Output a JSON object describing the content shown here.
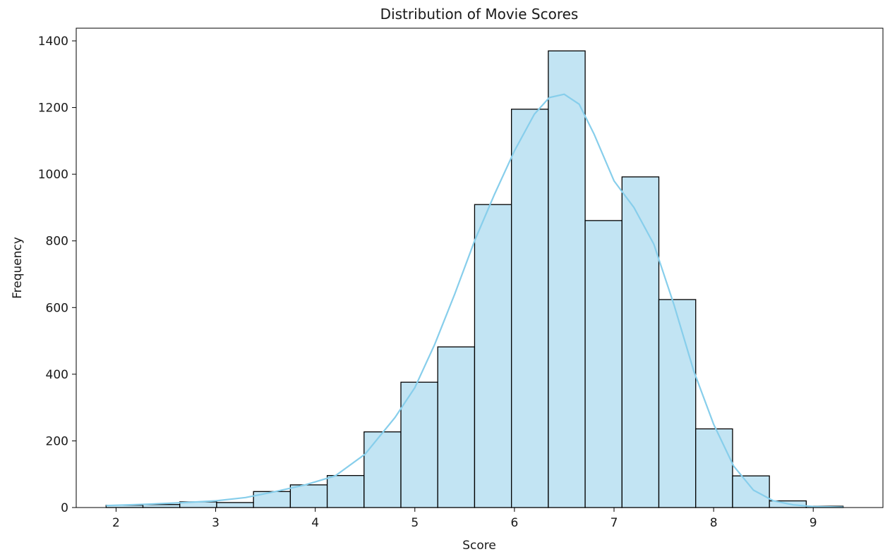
{
  "chart_data": {
    "type": "bar",
    "subtype": "histogram",
    "title": "Distribution of Movie Scores",
    "xlabel": "Score",
    "ylabel": "Frequency",
    "xlim": [
      1.6,
      9.7
    ],
    "ylim": [
      0,
      1400
    ],
    "xticks": [
      2,
      3,
      4,
      5,
      6,
      7,
      8,
      9
    ],
    "yticks": [
      0,
      200,
      400,
      600,
      800,
      1000,
      1200,
      1400
    ],
    "grid": false,
    "bins": {
      "edges": [
        1.9,
        2.27,
        2.64,
        3.01,
        3.38,
        3.75,
        4.12,
        4.49,
        4.86,
        5.23,
        5.6,
        5.97,
        6.34,
        6.71,
        7.08,
        7.45,
        7.82,
        8.19,
        8.56,
        8.93,
        9.3
      ],
      "values": [
        7,
        9,
        17,
        15,
        48,
        68,
        96,
        227,
        376,
        482,
        909,
        1195,
        1370,
        861,
        992,
        624,
        236,
        95,
        20,
        4
      ]
    },
    "kde": {
      "x": [
        1.9,
        2.3,
        2.7,
        3.0,
        3.3,
        3.6,
        3.9,
        4.2,
        4.5,
        4.8,
        5.0,
        5.2,
        5.4,
        5.6,
        5.8,
        6.0,
        6.2,
        6.35,
        6.5,
        6.65,
        6.8,
        7.0,
        7.2,
        7.4,
        7.6,
        7.8,
        8.0,
        8.2,
        8.4,
        8.6,
        8.8,
        9.0,
        9.3
      ],
      "y": [
        6,
        10,
        15,
        20,
        30,
        48,
        68,
        95,
        160,
        270,
        360,
        490,
        640,
        800,
        940,
        1070,
        1180,
        1230,
        1240,
        1210,
        1120,
        980,
        900,
        790,
        610,
        410,
        250,
        125,
        52,
        20,
        8,
        3,
        1
      ]
    },
    "colors": {
      "bar_fill": "#c2e4f3",
      "bar_edge": "#000000",
      "kde_line": "#87ceeb"
    }
  }
}
